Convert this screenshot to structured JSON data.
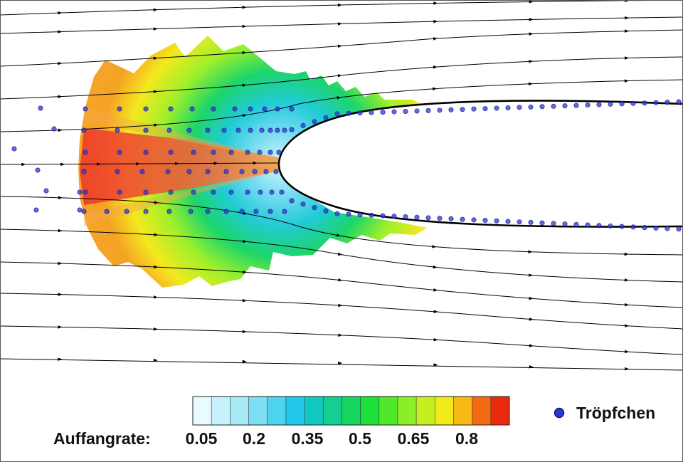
{
  "colorbar": {
    "label": "Auffangrate:",
    "ticks": [
      "0.05",
      "0.2",
      "0.35",
      "0.5",
      "0.65",
      "0.8"
    ],
    "colors": [
      "#e8fbff",
      "#c8f2fb",
      "#a6eaf6",
      "#7ddff2",
      "#4fd3ee",
      "#22c6ea",
      "#12c9c0",
      "#14cf90",
      "#16d560",
      "#1ee03a",
      "#4fe82a",
      "#8cee24",
      "#c4f020",
      "#f0ea1a",
      "#f7b914",
      "#f46a10",
      "#e92a0c"
    ]
  },
  "legend": {
    "label": "Tröpfchen",
    "marker_color": "#2c35d8"
  },
  "colors": {
    "streamline": "#000000",
    "droplet": "#2c35d8",
    "body_outline": "#000000"
  }
}
